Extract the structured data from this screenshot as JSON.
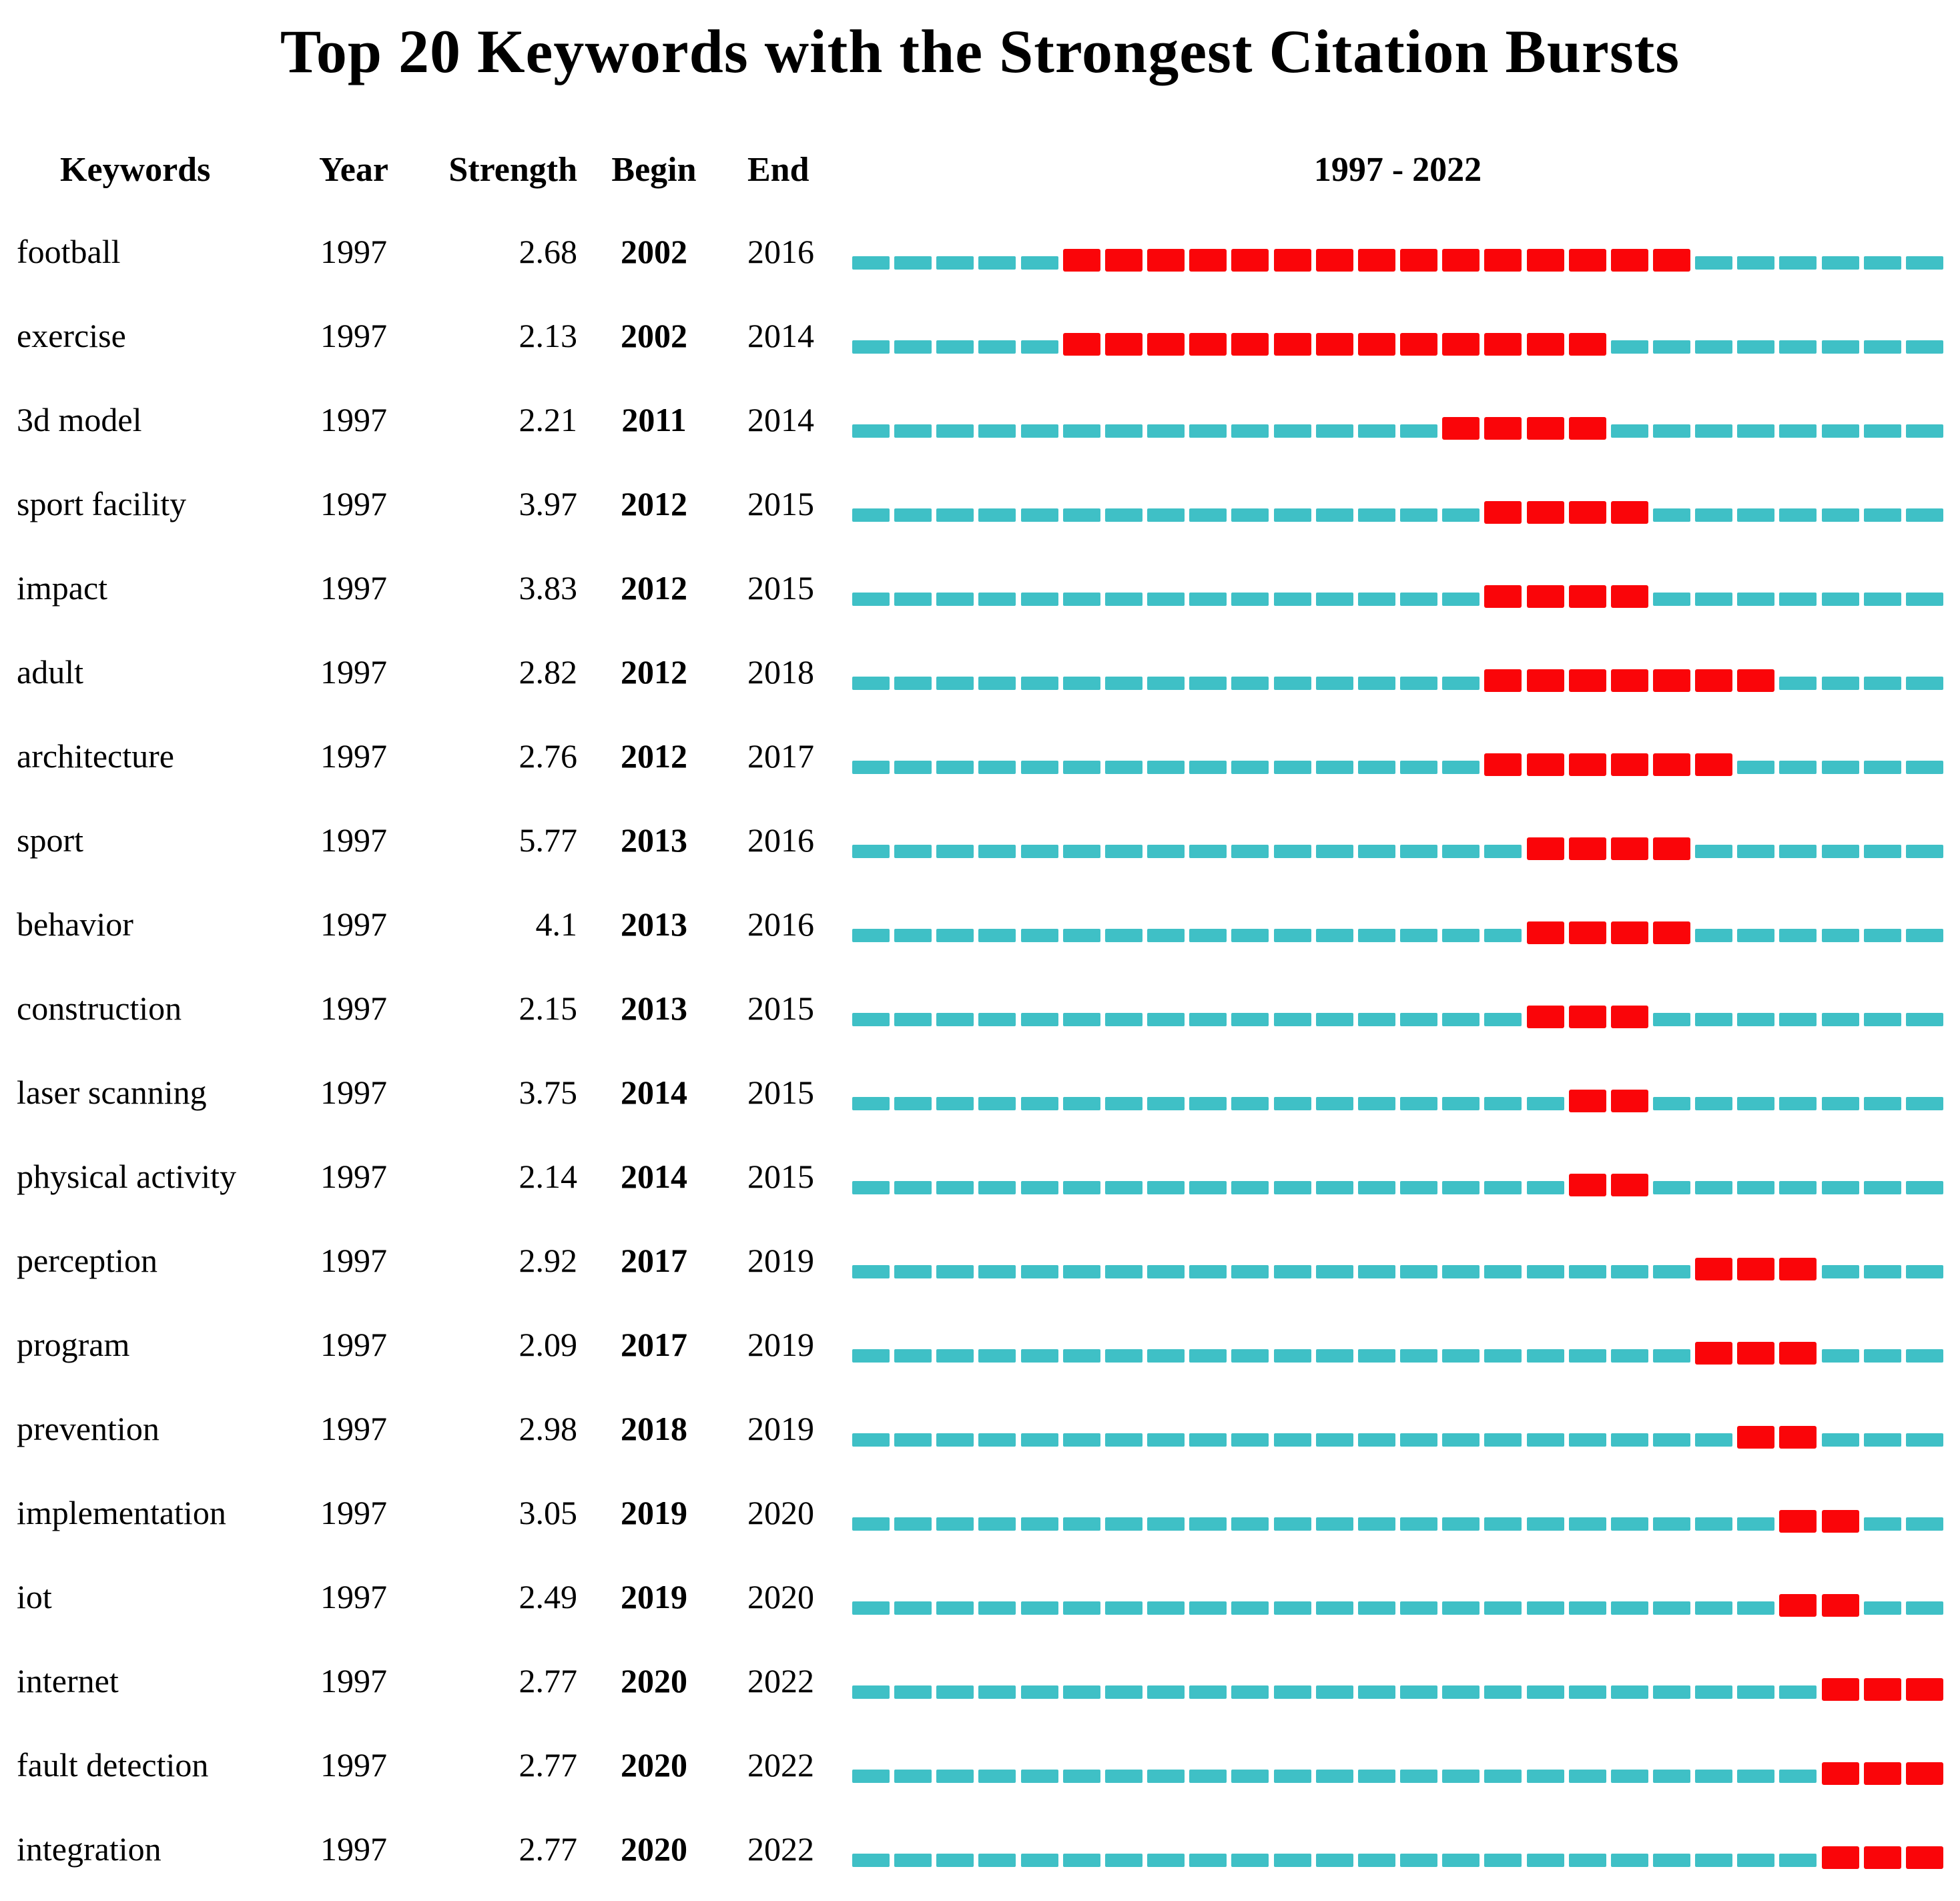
{
  "title": "Top 20 Keywords with the Strongest Citation Bursts",
  "columns": {
    "keywords": "Keywords",
    "year": "Year",
    "strength": "Strength",
    "begin": "Begin",
    "end": "End",
    "timeline": "1997 - 2022"
  },
  "colors": {
    "non_burst_segment": "#3FC0C6",
    "burst_segment": "#FA0509",
    "text": "#000000",
    "background": "#ffffff"
  },
  "chart_data": {
    "type": "table",
    "subtype": "citation-burst-timeline",
    "timeline_start_year": 1997,
    "timeline_end_year": 2022,
    "segments_per_row": 26,
    "legend": "red segments mark burst interval (Begin-End); teal segments mark non-burst years",
    "rows": [
      {
        "keyword": "football",
        "year": "1997",
        "strength": "2.68",
        "begin": "2002",
        "end": "2016"
      },
      {
        "keyword": "exercise",
        "year": "1997",
        "strength": "2.13",
        "begin": "2002",
        "end": "2014"
      },
      {
        "keyword": "3d model",
        "year": "1997",
        "strength": "2.21",
        "begin": "2011",
        "end": "2014"
      },
      {
        "keyword": "sport facility",
        "year": "1997",
        "strength": "3.97",
        "begin": "2012",
        "end": "2015"
      },
      {
        "keyword": "impact",
        "year": "1997",
        "strength": "3.83",
        "begin": "2012",
        "end": "2015"
      },
      {
        "keyword": "adult",
        "year": "1997",
        "strength": "2.82",
        "begin": "2012",
        "end": "2018"
      },
      {
        "keyword": "architecture",
        "year": "1997",
        "strength": "2.76",
        "begin": "2012",
        "end": "2017"
      },
      {
        "keyword": "sport",
        "year": "1997",
        "strength": "5.77",
        "begin": "2013",
        "end": "2016"
      },
      {
        "keyword": "behavior",
        "year": "1997",
        "strength": "4.1",
        "begin": "2013",
        "end": "2016"
      },
      {
        "keyword": "construction",
        "year": "1997",
        "strength": "2.15",
        "begin": "2013",
        "end": "2015"
      },
      {
        "keyword": "laser scanning",
        "year": "1997",
        "strength": "3.75",
        "begin": "2014",
        "end": "2015"
      },
      {
        "keyword": "physical activity",
        "year": "1997",
        "strength": "2.14",
        "begin": "2014",
        "end": "2015"
      },
      {
        "keyword": "perception",
        "year": "1997",
        "strength": "2.92",
        "begin": "2017",
        "end": "2019"
      },
      {
        "keyword": "program",
        "year": "1997",
        "strength": "2.09",
        "begin": "2017",
        "end": "2019"
      },
      {
        "keyword": "prevention",
        "year": "1997",
        "strength": "2.98",
        "begin": "2018",
        "end": "2019"
      },
      {
        "keyword": "implementation",
        "year": "1997",
        "strength": "3.05",
        "begin": "2019",
        "end": "2020"
      },
      {
        "keyword": "iot",
        "year": "1997",
        "strength": "2.49",
        "begin": "2019",
        "end": "2020"
      },
      {
        "keyword": "internet",
        "year": "1997",
        "strength": "2.77",
        "begin": "2020",
        "end": "2022"
      },
      {
        "keyword": "fault detection",
        "year": "1997",
        "strength": "2.77",
        "begin": "2020",
        "end": "2022"
      },
      {
        "keyword": "integration",
        "year": "1997",
        "strength": "2.77",
        "begin": "2020",
        "end": "2022"
      }
    ]
  }
}
